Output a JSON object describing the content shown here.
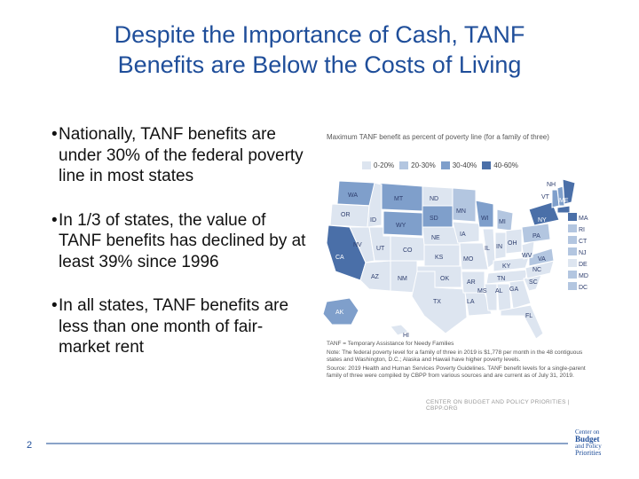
{
  "slide": {
    "title_line1": "Despite the Importance of Cash, TANF",
    "title_line2": "Benefits are Below the Costs of Living",
    "bullets": [
      "Nationally, TANF benefits are under 30% of the federal poverty line in most states",
      "In 1/3 of states, the value of TANF benefits has declined by at least 39% since 1996",
      "In all states, TANF benefits are less than one month of fair-market rent"
    ],
    "bullet_glyph": "•",
    "page_number": "2"
  },
  "figure": {
    "heading": "Maximum TANF benefit as percent of poverty line (for a family of three)",
    "legend": [
      {
        "label": "0-20%",
        "color": "#dde5f0"
      },
      {
        "label": "20-30%",
        "color": "#b3c6e0"
      },
      {
        "label": "30-40%",
        "color": "#7f9fcb"
      },
      {
        "label": "40-60%",
        "color": "#4a6fa8"
      }
    ],
    "states": {
      "WA": "WA",
      "OR": "OR",
      "CA": "CA",
      "ID": "ID",
      "NV": "NV",
      "MT": "MT",
      "WY": "WY",
      "UT": "UT",
      "AZ": "AZ",
      "CO": "CO",
      "NM": "NM",
      "ND": "ND",
      "SD": "SD",
      "NE": "NE",
      "KS": "KS",
      "OK": "OK",
      "TX": "TX",
      "MN": "MN",
      "IA": "IA",
      "MO": "MO",
      "AR": "AR",
      "LA": "LA",
      "WI": "WI",
      "IL": "IL",
      "MI": "MI",
      "IN": "IN",
      "OH": "OH",
      "KY": "KY",
      "TN": "TN",
      "MS": "MS",
      "AL": "AL",
      "GA": "GA",
      "FL": "FL",
      "SC": "SC",
      "NC": "NC",
      "VA": "VA",
      "WV": "WV",
      "PA": "PA",
      "NY": "NY",
      "VT": "VT",
      "NH": "NH",
      "ME": "ME",
      "AK": "AK",
      "HI": "HI",
      "MA": "MA",
      "RI": "RI",
      "CT": "CT",
      "NJ": "NJ",
      "DE": "DE",
      "MD": "MD",
      "DC": "DC"
    },
    "note_1": "TANF = Temporary Assistance for Needy Families",
    "note_2": "Note: The federal poverty level for a family of three in 2019 is $1,778 per month in the 48 contiguous states and Washington, D.C.; Alaska and Hawaii have higher poverty levels.",
    "note_3": "Source: 2019 Health and Human Services Poverty Guidelines. TANF benefit levels for a single-parent family of three were compiled by CBPP from various sources and are current as of July 31, 2019.",
    "credit": "CENTER ON BUDGET AND POLICY PRIORITIES | CBPP.ORG"
  },
  "logo": {
    "line1": "Center on",
    "line2": "Budget",
    "line3": "and Policy",
    "line4": "Priorities"
  }
}
